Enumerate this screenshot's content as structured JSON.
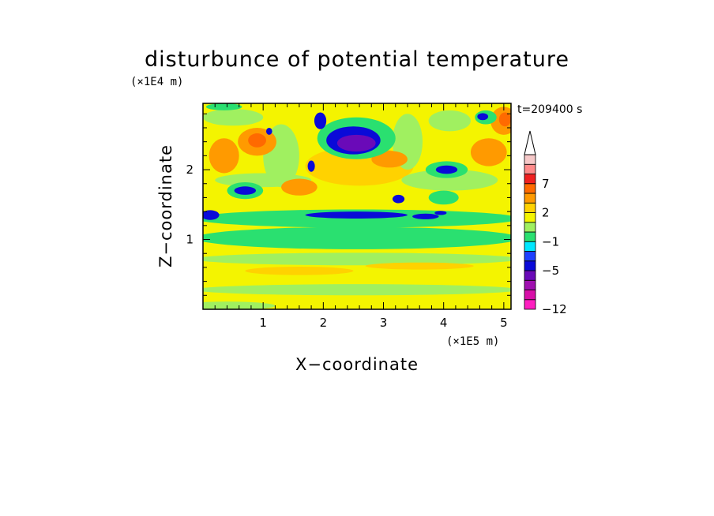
{
  "chart_data": {
    "type": "heatmap",
    "title": "disturbunce of potential temperature",
    "xlabel": "X−coordinate",
    "ylabel": "Z−coordinate",
    "x_unit": "(×1E5 m)",
    "y_unit": "(×1E4 m)",
    "time_label": "t=209400 s",
    "xlim": [
      0,
      5.12
    ],
    "ylim": [
      0,
      2.95
    ],
    "x_ticks": [
      1,
      2,
      3,
      4,
      5
    ],
    "x_tick_labels": [
      "1",
      "2",
      "3",
      "4",
      "5"
    ],
    "y_ticks": [
      1,
      2
    ],
    "y_tick_labels": [
      "1",
      "2"
    ],
    "colorbar": {
      "levels": [
        -12,
        -10,
        -8,
        -6,
        -5,
        -4,
        -2,
        -1,
        0,
        1,
        2,
        3,
        5,
        7,
        8,
        10,
        12
      ],
      "tick_labels": [
        "−12",
        "−5",
        "−1",
        "2",
        "7"
      ],
      "tick_values": [
        -12,
        -5,
        -1,
        2,
        7
      ],
      "colors": [
        "#ff1fc0",
        "#d80fa8",
        "#a010b0",
        "#6a0ab8",
        "#0a0ad8",
        "#1e40ff",
        "#00e8ff",
        "#2ae070",
        "#a0f060",
        "#f4f400",
        "#ffd200",
        "#ff9a00",
        "#ff6a00",
        "#f02020",
        "#ff8a8a",
        "#f5c8c8"
      ],
      "extend": "max"
    },
    "features": [
      {
        "x": 2.55,
        "z": 2.4,
        "value": -5.5,
        "desc": "strong negative core"
      },
      {
        "x": 4.05,
        "z": 2.0,
        "value": -4
      },
      {
        "x": 4.7,
        "z": 2.7,
        "value": -4
      },
      {
        "x": 0.7,
        "z": 1.7,
        "value": -4
      },
      {
        "x": 1.95,
        "z": 2.65,
        "value": -4
      },
      {
        "x": 2.6,
        "z": 1.35,
        "value": -4.5
      },
      {
        "x": 0.1,
        "z": 1.35,
        "value": -4
      },
      {
        "x": 0.9,
        "z": 2.4,
        "value": 4.5
      },
      {
        "x": 0.35,
        "z": 2.2,
        "value": 4.5
      },
      {
        "x": 3.1,
        "z": 2.1,
        "value": 3
      },
      {
        "x": 5.0,
        "z": 2.7,
        "value": 5
      },
      {
        "x": 4.8,
        "z": 2.2,
        "value": 4
      }
    ]
  }
}
